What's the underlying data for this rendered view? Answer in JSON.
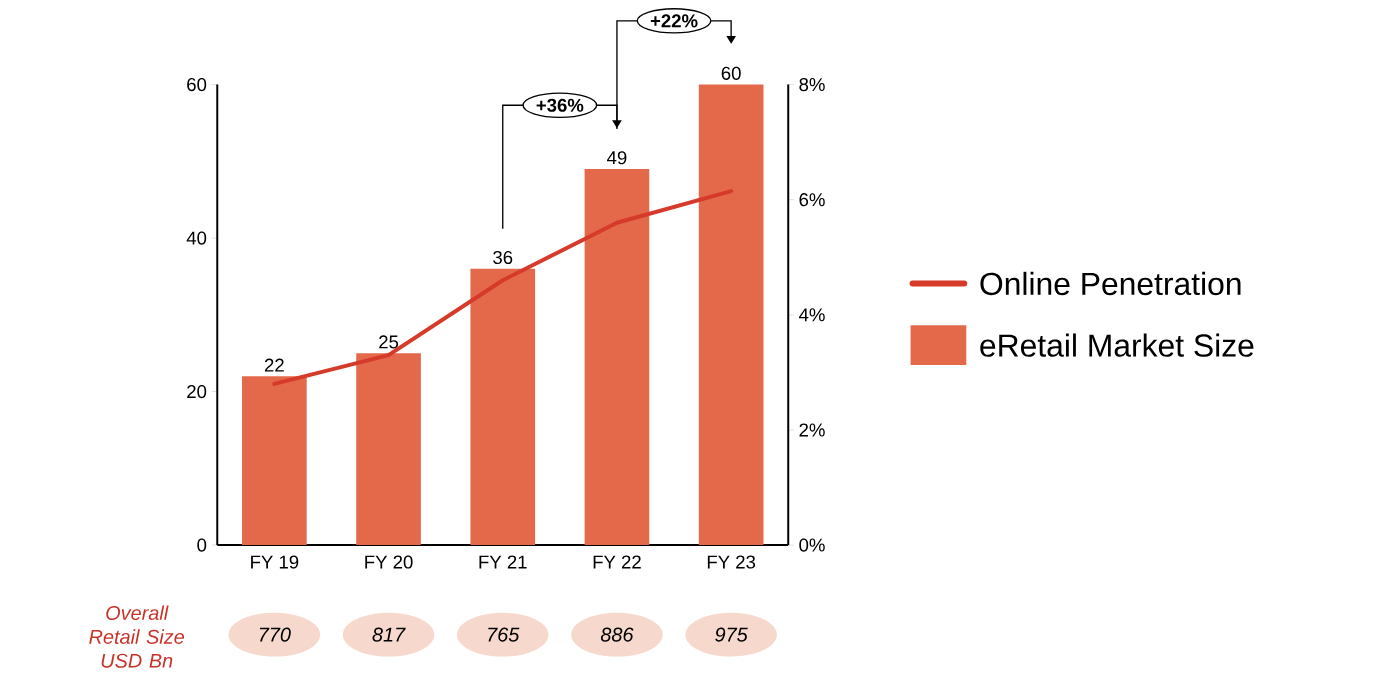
{
  "chart_data": {
    "type": "bar",
    "categories": [
      "FY 19",
      "FY 20",
      "FY 21",
      "FY 22",
      "FY 23"
    ],
    "series": [
      {
        "name": "Online Penetration",
        "type": "line",
        "axis": "y2",
        "color": "#d63a2a",
        "values": [
          2.8,
          3.3,
          4.6,
          5.6,
          6.15
        ]
      },
      {
        "name": "eRetail Market Size",
        "color": "#e4694a",
        "values": [
          22,
          25,
          36,
          49,
          60
        ],
        "value_labels": [
          "22",
          "25",
          "36",
          "49",
          "60"
        ]
      }
    ],
    "ylim": [
      0,
      60
    ],
    "yticks": [
      0,
      20,
      40,
      60
    ],
    "y2lim": [
      0,
      8
    ],
    "y2ticks": [
      {
        "value": 0,
        "label": "0%"
      },
      {
        "value": 2,
        "label": "2%"
      },
      {
        "value": 4,
        "label": "4%"
      },
      {
        "value": 6,
        "label": "6%"
      },
      {
        "value": 8,
        "label": "8%"
      }
    ],
    "legend": "right",
    "annotations": [
      "+36%",
      "+22%",
      "Overall Retail Size USD Bn",
      "770",
      "817",
      "765",
      "886",
      "975"
    ]
  }
}
